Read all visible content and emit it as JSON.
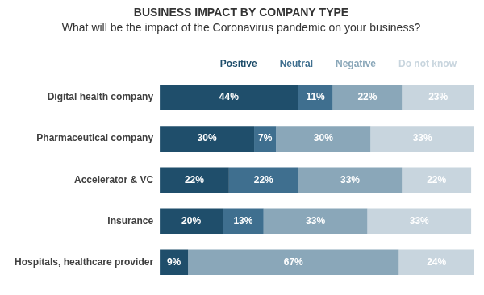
{
  "chart_data": {
    "type": "bar",
    "title": "BUSINESS IMPACT BY COMPANY TYPE",
    "subtitle": "What will be the impact of the Coronavirus pandemic on your business?",
    "categories": [
      "Digital health company",
      "Pharmaceutical company",
      "Accelerator & VC",
      "Insurance",
      "Hospitals, healthcare provider"
    ],
    "series": [
      {
        "name": "Positive",
        "color": "#1f4e6b",
        "values": [
          44,
          30,
          22,
          20,
          9
        ],
        "value_labels": [
          "44%",
          "30%",
          "22%",
          "20%",
          "9%"
        ]
      },
      {
        "name": "Neutral",
        "color": "#3f6f8f",
        "values": [
          11,
          7,
          22,
          13,
          null
        ],
        "value_labels": [
          "11%",
          "7%",
          "22%",
          "13%",
          null
        ]
      },
      {
        "name": "Negative",
        "color": "#8aa7b9",
        "values": [
          22,
          30,
          33,
          33,
          67
        ],
        "value_labels": [
          "22%",
          "30%",
          "33%",
          "33%",
          "67%"
        ]
      },
      {
        "name": "Do not know",
        "color": "#c8d5de",
        "values": [
          23,
          33,
          22,
          33,
          24
        ],
        "value_labels": [
          "23%",
          "33%",
          "22%",
          "33%",
          "24%"
        ]
      }
    ],
    "orientation": "horizontal",
    "stacked": true,
    "data_labels": true,
    "legend": "top",
    "tick_labels": "y",
    "grid": false,
    "xlim": [
      0,
      100
    ]
  }
}
